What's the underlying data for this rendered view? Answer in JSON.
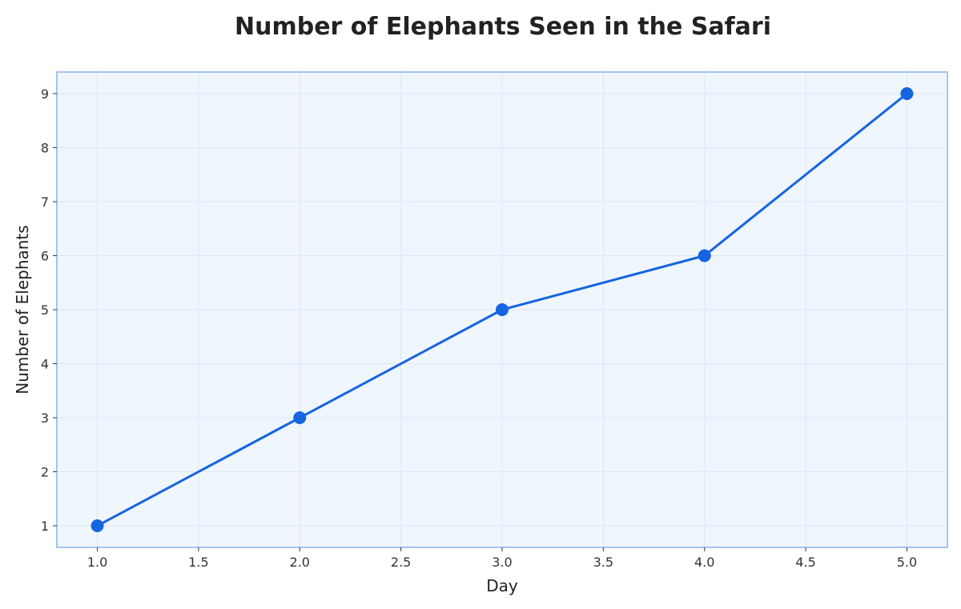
{
  "chart_data": {
    "type": "line",
    "title": "Number of Elephants Seen in the Safari",
    "xlabel": "Day",
    "ylabel": "Number of Elephants",
    "x": [
      1,
      2,
      3,
      4,
      5
    ],
    "series": [
      {
        "values": [
          1,
          3,
          5,
          6,
          9
        ]
      }
    ],
    "xlim": [
      0.8,
      5.2
    ],
    "ylim": [
      0.6,
      9.4
    ],
    "xticks": [
      "1.0",
      "1.5",
      "2.0",
      "2.5",
      "3.0",
      "3.5",
      "4.0",
      "4.5",
      "5.0"
    ],
    "yticks": [
      "1",
      "2",
      "3",
      "4",
      "5",
      "6",
      "7",
      "8",
      "9"
    ],
    "grid": true,
    "colors": {
      "line": "#1565e0",
      "plot_background": "#f0f6fe",
      "border": "#a3c4f3",
      "grid": "#dde6f7"
    }
  }
}
